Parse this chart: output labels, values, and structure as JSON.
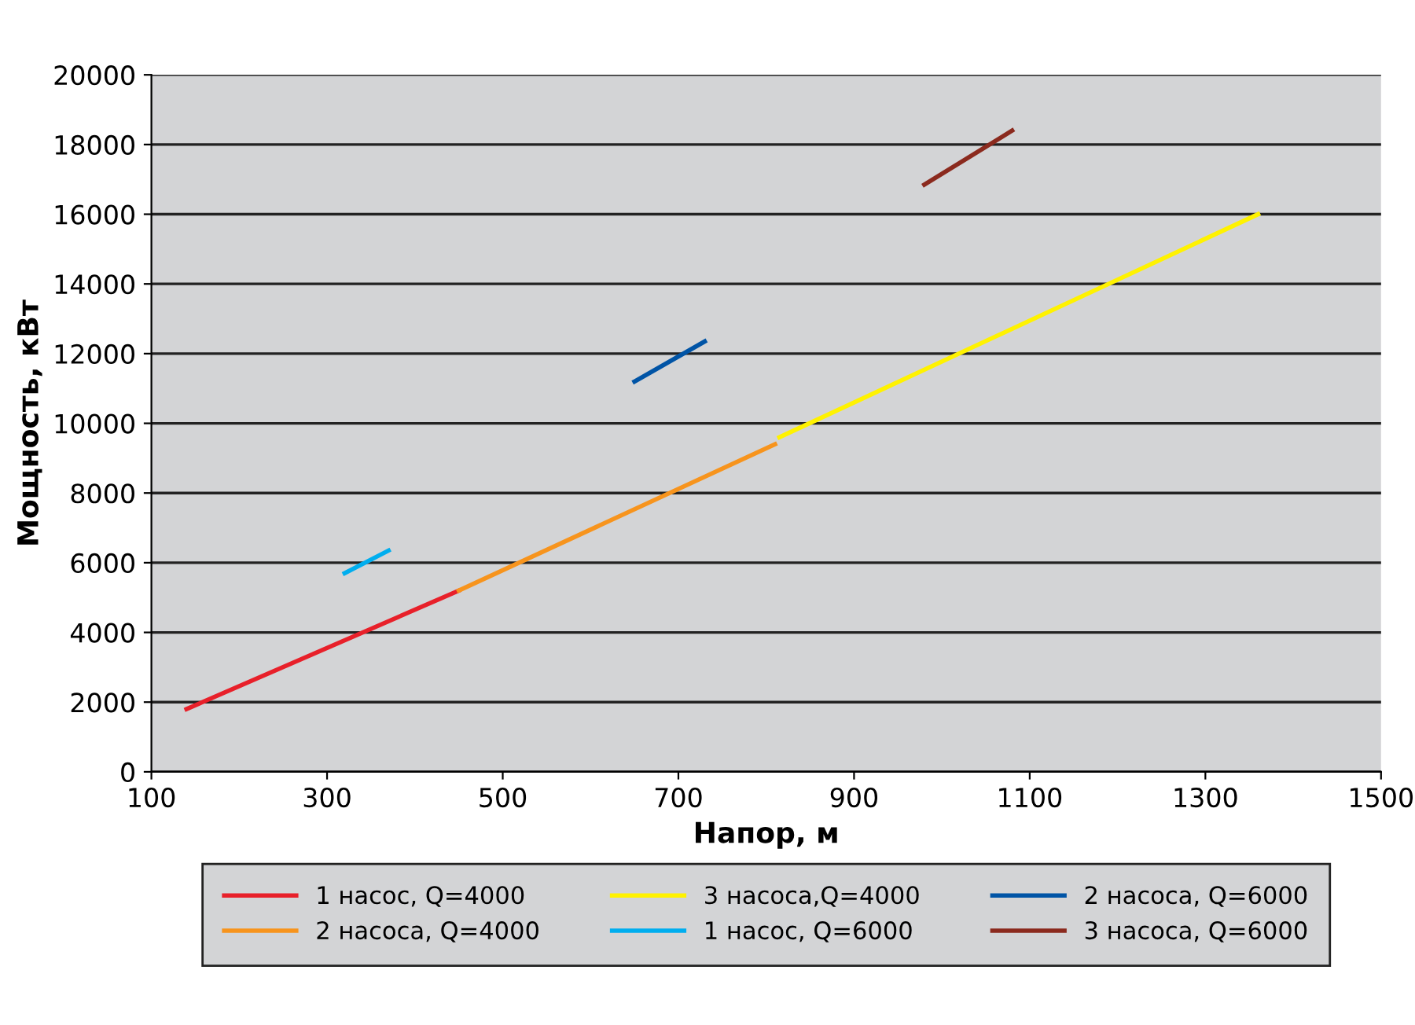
{
  "chart_data": {
    "type": "line",
    "xlabel": "Напор, м",
    "ylabel": "Мощность, кВт",
    "xlim": [
      100,
      1500
    ],
    "xticks": [
      100,
      300,
      500,
      700,
      900,
      1100,
      1300,
      1500
    ],
    "ylim": [
      0,
      20000
    ],
    "yticks": [
      0,
      2000,
      4000,
      6000,
      8000,
      10000,
      12000,
      14000,
      16000,
      18000,
      20000
    ],
    "grid": "y",
    "legend": "bottom",
    "marker": "none",
    "line_style": "solid",
    "series": [
      {
        "name": "1 насос, Q=4000",
        "color": "#e8202a",
        "x": [
          140,
          450
        ],
        "values": [
          1800,
          5200
        ]
      },
      {
        "name": "2 насоса, Q=4000",
        "color": "#f7941d",
        "x": [
          450,
          810
        ],
        "values": [
          5200,
          9400
        ]
      },
      {
        "name": "3 насоса,Q=4000",
        "color": "#fff200",
        "x": [
          815,
          1360
        ],
        "values": [
          9600,
          16000
        ]
      },
      {
        "name": "1 насос, Q=6000",
        "color": "#00aeef",
        "x": [
          320,
          370
        ],
        "values": [
          5700,
          6350
        ]
      },
      {
        "name": "2 насоса, Q=6000",
        "color": "#0054a6",
        "x": [
          650,
          730
        ],
        "values": [
          11200,
          12350
        ]
      },
      {
        "name": "3 насоса, Q=6000",
        "color": "#8b2a1e",
        "x": [
          980,
          1080
        ],
        "values": [
          16850,
          18400
        ]
      }
    ]
  }
}
